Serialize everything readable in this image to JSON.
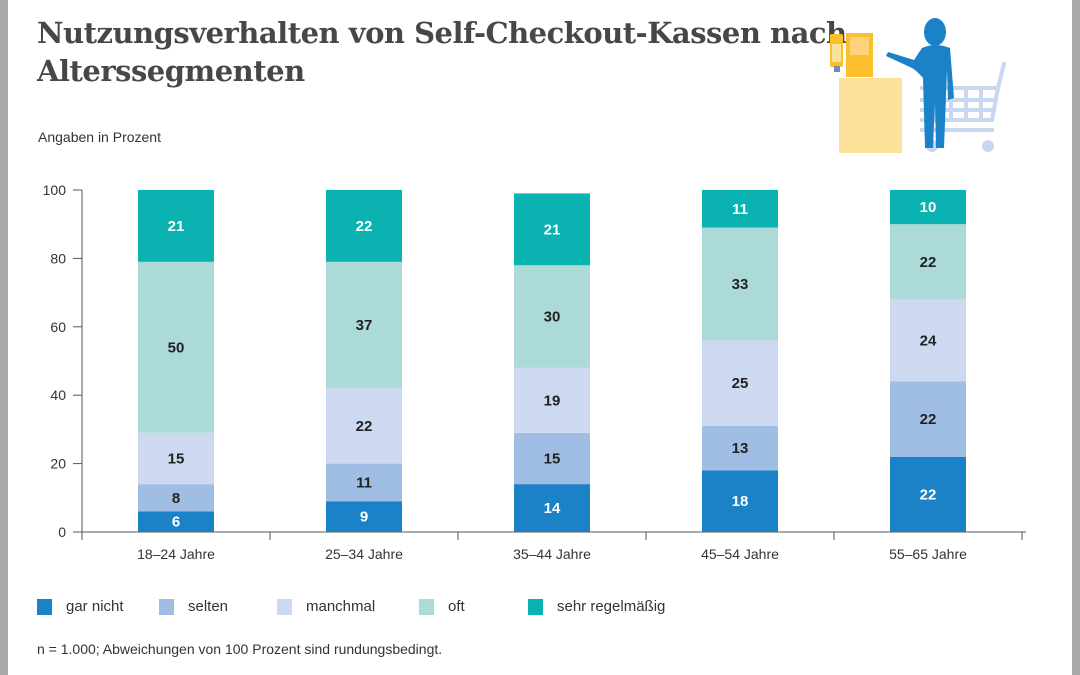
{
  "chart_data": {
    "type": "bar",
    "stacked": true,
    "title": "Nutzungsverhalten von Self-Checkout-Kassen nach Alterssegmenten",
    "subtitle": "Angaben in Prozent",
    "categories": [
      "18–24 Jahre",
      "25–34 Jahre",
      "35–44 Jahre",
      "45–54 Jahre",
      "55–65 Jahre"
    ],
    "series": [
      {
        "name": "gar nicht",
        "color": "#1b82c8",
        "label_color": "#ffffff",
        "values": [
          6,
          9,
          14,
          18,
          22
        ]
      },
      {
        "name": "selten",
        "color": "#a0bee4",
        "label_color": "#222222",
        "values": [
          8,
          11,
          15,
          13,
          22
        ]
      },
      {
        "name": "manchmal",
        "color": "#cdd9f1",
        "label_color": "#222222",
        "values": [
          15,
          22,
          19,
          25,
          24
        ]
      },
      {
        "name": "oft",
        "color": "#acdad8",
        "label_color": "#222222",
        "values": [
          50,
          37,
          30,
          33,
          22
        ]
      },
      {
        "name": "sehr regelmäßig",
        "color": "#0bb2b2",
        "label_color": "#ffffff",
        "values": [
          21,
          22,
          21,
          11,
          10
        ]
      }
    ],
    "ylim": [
      0,
      100
    ],
    "yticks": [
      0,
      20,
      40,
      60,
      80,
      100
    ],
    "grid": false,
    "legend_position": "bottom",
    "note": "n = 1.000; Abweichungen von 100 Prozent sind rundungsbedingt."
  },
  "illustration": {
    "icon": "self-checkout-person-cart-icon"
  }
}
